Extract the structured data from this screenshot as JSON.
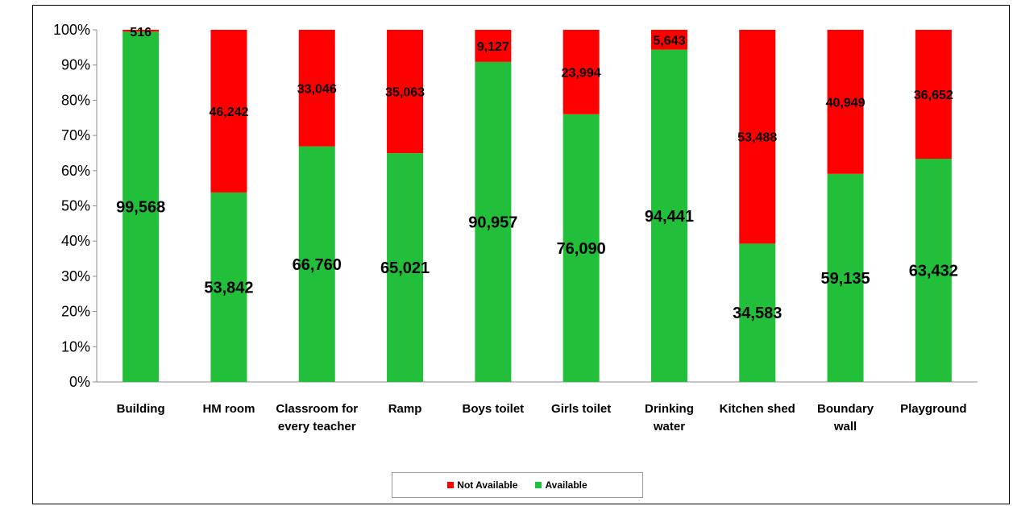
{
  "chart_data": {
    "type": "bar",
    "stacked": true,
    "normalized": true,
    "categories": [
      [
        "Building"
      ],
      [
        "HM room"
      ],
      [
        "Classroom for",
        "every teacher"
      ],
      [
        "Ramp"
      ],
      [
        "Boys toilet"
      ],
      [
        "Girls  toilet"
      ],
      [
        "Drinking",
        "water"
      ],
      [
        "Kitchen shed"
      ],
      [
        "Boundary",
        "wall"
      ],
      [
        "Playground"
      ]
    ],
    "series": [
      {
        "name": "Available",
        "color": "#22c03a",
        "values": [
          99568,
          53842,
          66760,
          65021,
          90957,
          76090,
          94441,
          34583,
          59135,
          63432
        ],
        "labels": [
          "99,568",
          "53,842",
          "66,760",
          "65,021",
          "90,957",
          "76,090",
          "94,441",
          "34,583",
          "59,135",
          "63,432"
        ]
      },
      {
        "name": "Not Available",
        "color": "#ff0000",
        "values": [
          516,
          46242,
          33046,
          35063,
          9127,
          23994,
          5643,
          53488,
          40949,
          36652
        ],
        "labels": [
          "516",
          "46,242",
          "33,046",
          "35,063",
          "9,127",
          "23,994",
          "5,643",
          "53,488",
          "40,949",
          "36,652"
        ]
      }
    ],
    "yticks": [
      "0%",
      "10%",
      "20%",
      "30%",
      "40%",
      "50%",
      "60%",
      "70%",
      "80%",
      "90%",
      "100%"
    ],
    "ylim": [
      0,
      100
    ],
    "legend": {
      "position": "bottom",
      "items": [
        {
          "name": "Not Available",
          "color": "#ff0000"
        },
        {
          "name": "Available",
          "color": "#22c03a"
        }
      ]
    }
  }
}
